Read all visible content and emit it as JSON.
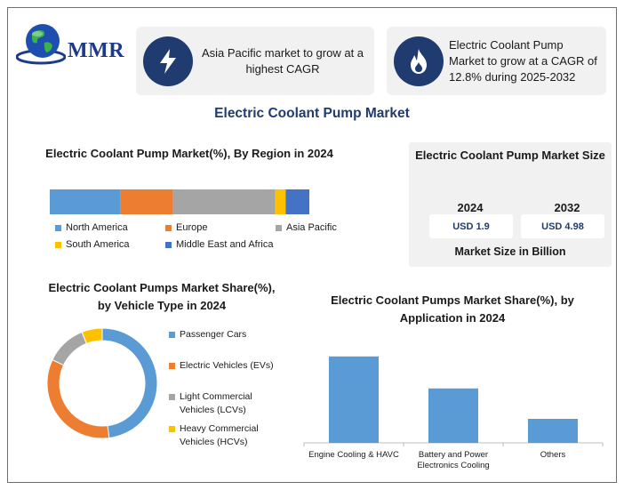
{
  "logo": {
    "text": "MMR",
    "icon": "globe-icon"
  },
  "banners": [
    {
      "icon": "lightning-bolt-icon",
      "text": "Asia Pacific market to grow at a highest CAGR"
    },
    {
      "icon": "flame-icon",
      "text": "Electric Coolant Pump Market to grow at a CAGR of 12.8% during 2025-2032"
    }
  ],
  "main_title": "Electric Coolant Pump Market",
  "market_size": {
    "title": "Electric Coolant Pump Market Size",
    "years": [
      {
        "year": "2024",
        "value": "USD 1.9"
      },
      {
        "year": "2032",
        "value": "USD 4.98"
      }
    ],
    "caption": "Market Size in Billion"
  },
  "colors": {
    "blue": "#5b9bd5",
    "orange": "#ed7d31",
    "gray": "#a5a5a5",
    "yellow": "#ffc000",
    "dark_blue": "#4472c4",
    "navy": "#1f3b6f"
  },
  "chart_data": [
    {
      "type": "bar",
      "stacked": true,
      "orientation": "horizontal",
      "title": "Electric Coolant Pump Market(%), By Region in 2024",
      "series": [
        {
          "name": "North America",
          "value": 27,
          "color": "#5b9bd5"
        },
        {
          "name": "Europe",
          "value": 20,
          "color": "#ed7d31"
        },
        {
          "name": "Asia Pacific",
          "value": 39,
          "color": "#a5a5a5"
        },
        {
          "name": "South America",
          "value": 4,
          "color": "#ffc000"
        },
        {
          "name": "Middle East and Africa",
          "value": 9,
          "color": "#4472c4"
        }
      ],
      "legend": "bottom"
    },
    {
      "type": "pie",
      "donut": true,
      "title": "Electric Coolant Pumps Market Share(%), by Vehicle Type in 2024",
      "slices": [
        {
          "name": "Passenger Cars",
          "value": 48,
          "color": "#5b9bd5"
        },
        {
          "name": "Electric Vehicles (EVs)",
          "value": 34,
          "color": "#ed7d31"
        },
        {
          "name": "Light Commercial Vehicles (LCVs)",
          "value": 12,
          "color": "#a5a5a5"
        },
        {
          "name": "Heavy Commercial Vehicles (HCVs)",
          "value": 6,
          "color": "#ffc000"
        }
      ],
      "legend": "right"
    },
    {
      "type": "bar",
      "title": "Electric Coolant Pumps Market Share(%), by Application in 2024",
      "categories": [
        "Engine Cooling & HAVC",
        "Battery and Power Electronics Cooling",
        "Others"
      ],
      "category_lines": [
        [
          "Engine Cooling & HAVC"
        ],
        [
          "Battery and Power",
          "Electronics Cooling"
        ],
        [
          "Others"
        ]
      ],
      "values": [
        54,
        34,
        15
      ],
      "color": "#5b9bd5",
      "ylim": [
        0,
        60
      ],
      "grid": false
    }
  ]
}
